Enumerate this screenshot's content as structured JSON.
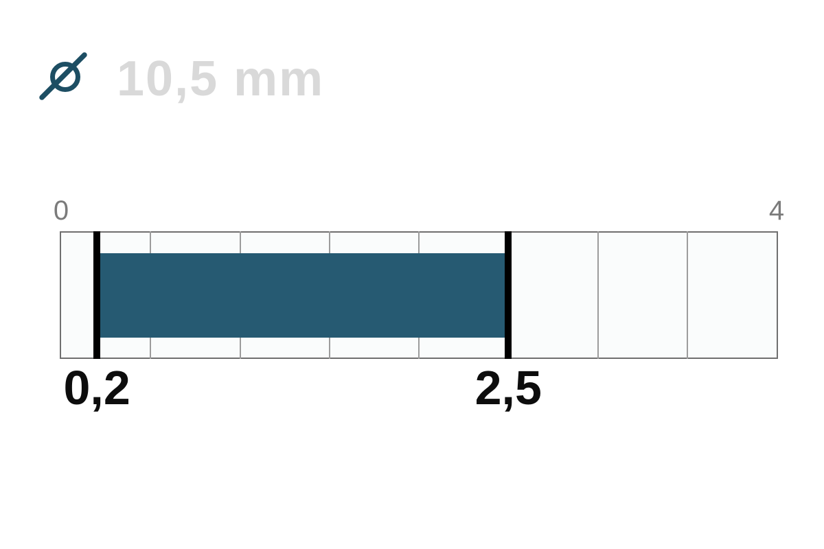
{
  "header": {
    "icon": "diameter-symbol",
    "value_text": "10,5 mm"
  },
  "chart_data": {
    "type": "bar",
    "subtype": "horizontal-range-indicator",
    "title": "10,5 mm",
    "unit": "mm",
    "axis": {
      "min": 0,
      "max": 4,
      "min_label": "0",
      "max_label": "4",
      "grid_interval": 0.5,
      "grid": true
    },
    "highlighted_range": {
      "start": 0.2,
      "end": 2.5,
      "start_label": "0,2",
      "end_label": "2,5"
    },
    "legend": "none",
    "colors": {
      "bar_fill": "#265a72",
      "icon": "#1d4e63",
      "range_marker": "#000000",
      "gridline": "#9c9c9c",
      "track_border": "#6f6f6f",
      "track_fill": "#fafcfc",
      "axis_label": "#7b7b7b",
      "value_label": "#0d0d0d",
      "title_text": "#d9d9d9",
      "background": "#ffffff"
    }
  }
}
